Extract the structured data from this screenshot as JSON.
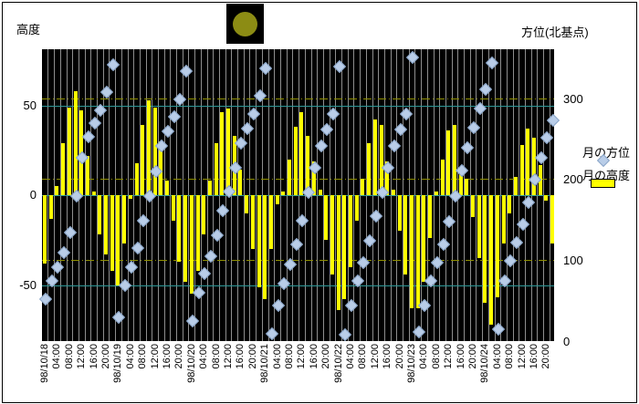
{
  "header": {
    "left_axis_title": "高度",
    "right_axis_title": "方位(北基点)"
  },
  "legend": {
    "azimuth_label": "月の方位",
    "altitude_label": "月の高度"
  },
  "colors": {
    "plot_bg": "#000000",
    "bar": "#ffff00",
    "marker_fill": "#b9cde8",
    "marker_edge": "#8aa5c8",
    "vgrid": "#8e8e8e",
    "alt_grid": "#2f9898",
    "az_grid": "#8f8f00",
    "moon": "#8c8c14",
    "moon_bg": "#000000"
  },
  "chart_data": {
    "type": "bar+scatter",
    "title": "",
    "x_dates": [
      "98/10/18",
      "98/10/19",
      "98/10/20",
      "98/10/21",
      "98/10/22",
      "98/10/23",
      "98/10/24"
    ],
    "x_step_hours": 2,
    "points_per_day": 12,
    "x_tick_labels": [
      "98/10/18",
      "04:00",
      "08:00",
      "12:00",
      "16:00",
      "20:00",
      "98/10/19",
      "04:00",
      "08:00",
      "12:00",
      "16:00",
      "20:00",
      "98/10/20",
      "04:00",
      "08:00",
      "12:00",
      "16:00",
      "20:00",
      "98/10/21",
      "04:00",
      "08:00",
      "12:00",
      "16:00",
      "20:00",
      "98/10/22",
      "04:00",
      "08:00",
      "12:00",
      "16:00",
      "20:00",
      "98/10/23",
      "04:00",
      "08:00",
      "12:00",
      "16:00",
      "20:00",
      "98/10/24",
      "04:00",
      "08:00",
      "12:00",
      "16:00",
      "20:00"
    ],
    "series": [
      {
        "name": "月の高度",
        "type": "bar",
        "axis": "left",
        "values": [
          -38,
          -13,
          5,
          29,
          49,
          58,
          47,
          22,
          2,
          -22,
          -33,
          -42,
          -50,
          -27,
          -2,
          18,
          39,
          53,
          49,
          30,
          8,
          -14,
          -37,
          -48,
          -55,
          -42,
          -22,
          8,
          29,
          46,
          48,
          33,
          14,
          -10,
          -30,
          -51,
          -58,
          -30,
          -5,
          2,
          20,
          38,
          46,
          33,
          19,
          3,
          -25,
          -44,
          -64,
          -58,
          -40,
          -14,
          9,
          29,
          42,
          39,
          19,
          3,
          -20,
          -44,
          -63,
          -63,
          -48,
          -24,
          2,
          20,
          36,
          39,
          16,
          9,
          -12,
          -35,
          -60,
          -72,
          -57,
          -27,
          -10,
          10,
          28,
          37,
          32,
          17,
          -3,
          -27
        ]
      },
      {
        "name": "月の方位",
        "type": "scatter",
        "axis": "right",
        "values": [
          52,
          75,
          92,
          110,
          135,
          180,
          227,
          253,
          270,
          286,
          309,
          343,
          30,
          70,
          92,
          116,
          150,
          180,
          210,
          242,
          260,
          278,
          300,
          335,
          26,
          60,
          84,
          106,
          132,
          162,
          186,
          215,
          246,
          264,
          282,
          304,
          338,
          10,
          45,
          72,
          95,
          120,
          150,
          185,
          215,
          242,
          262,
          282,
          340,
          8,
          45,
          75,
          98,
          125,
          155,
          185,
          215,
          242,
          262,
          282,
          352,
          12,
          45,
          75,
          98,
          120,
          148,
          180,
          212,
          240,
          265,
          288,
          312,
          345,
          15,
          75,
          100,
          122,
          145,
          172,
          200,
          228,
          252,
          274
        ]
      }
    ],
    "left_axis": {
      "label": "高度",
      "ticks": [
        50,
        0,
        -50
      ],
      "tick_labels": [
        "50",
        "0",
        "-50"
      ],
      "range": [
        -81,
        81
      ]
    },
    "right_axis": {
      "label": "方位(北基点)",
      "ticks": [
        300,
        200,
        100,
        0
      ],
      "tick_labels": [
        "300",
        "200",
        "100",
        "0"
      ],
      "range": [
        0,
        362
      ]
    },
    "grid": {
      "vertical": true,
      "alt_gridlines": [
        50,
        0,
        -50
      ],
      "az_gridlines": [
        300,
        200,
        100
      ]
    },
    "legend_position": "right"
  }
}
